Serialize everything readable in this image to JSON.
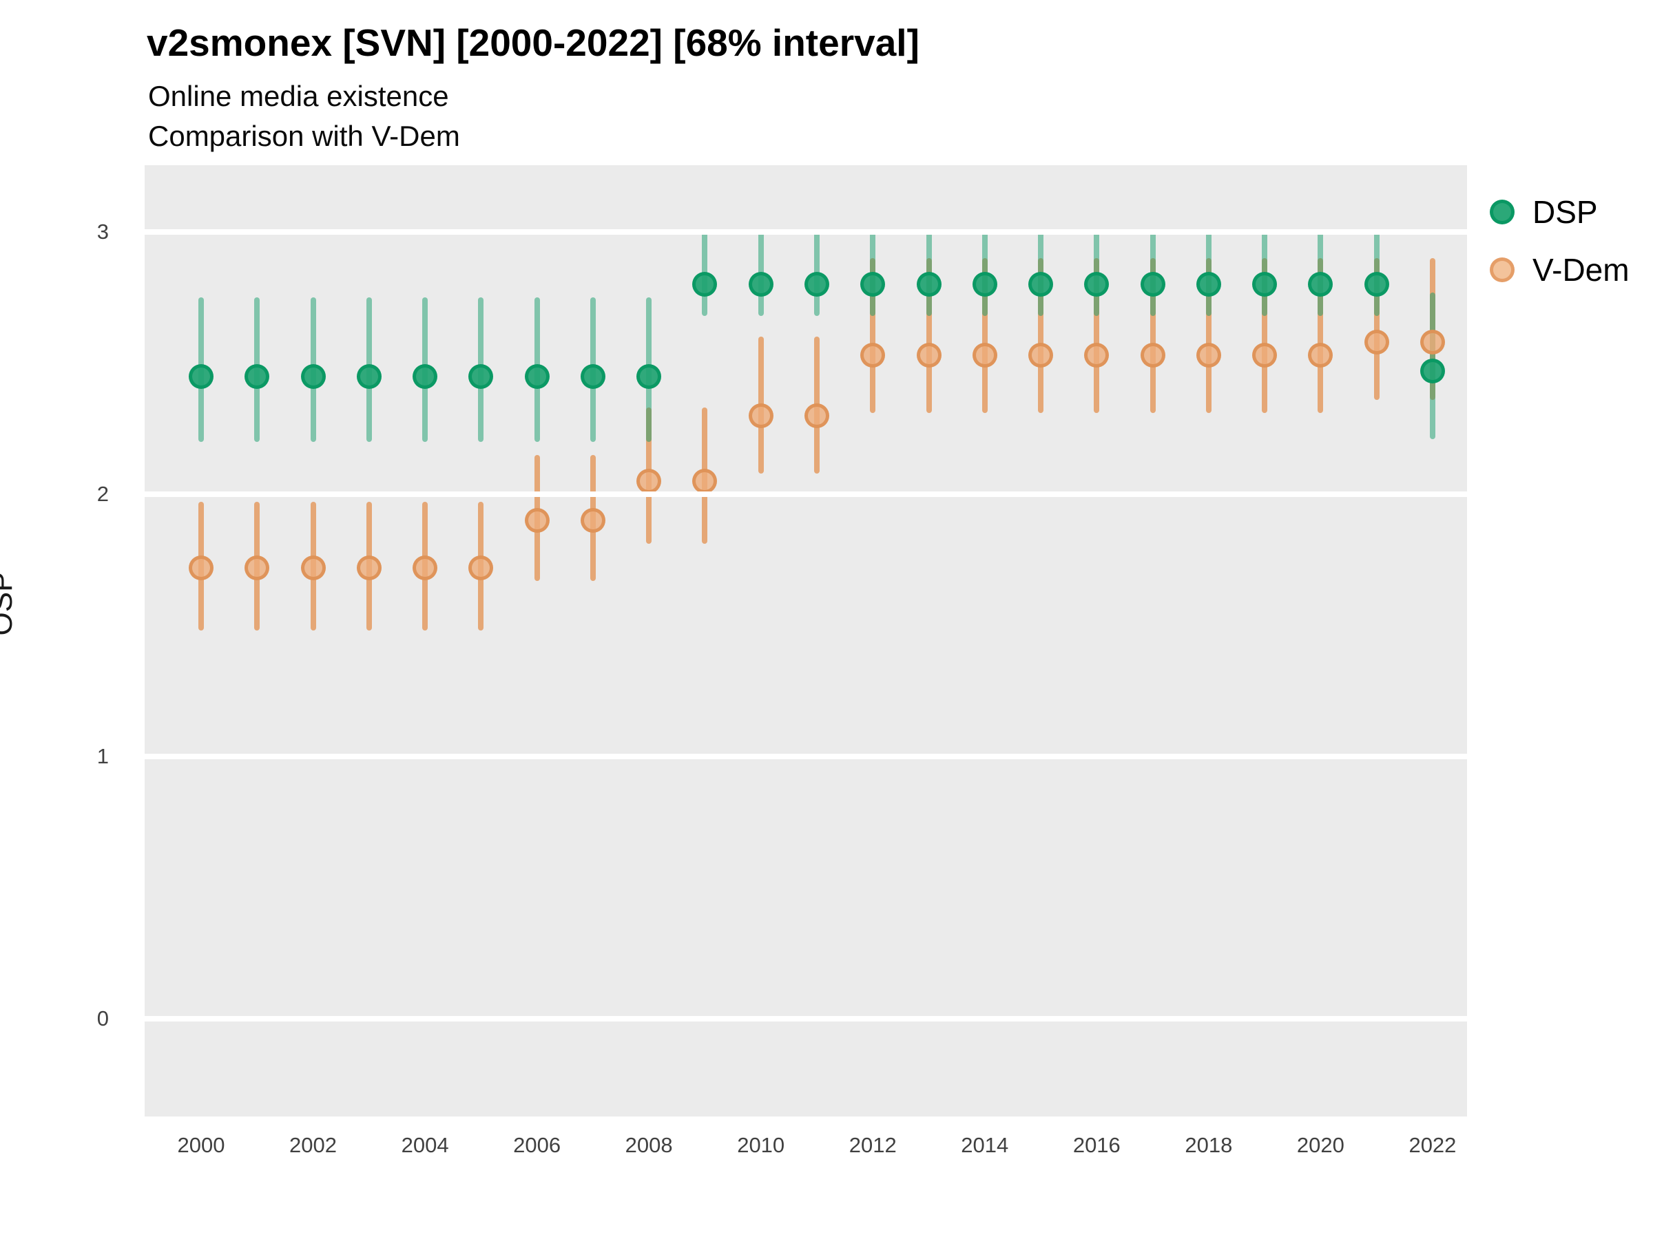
{
  "header": {
    "title": "v2smonex [SVN] [2000-2022] [68% interval]",
    "subtitle": "Online media existence",
    "subtitle2": "Comparison with V-Dem"
  },
  "axes": {
    "y_title": "OSP",
    "y_ticks": [
      3,
      2,
      1,
      0
    ],
    "x_ticks": [
      2000,
      2002,
      2004,
      2006,
      2008,
      2010,
      2012,
      2014,
      2016,
      2018,
      2020,
      2022
    ]
  },
  "legend": {
    "items": [
      {
        "label": "DSP",
        "color": "#17a06d"
      },
      {
        "label": "V-Dem",
        "color": "#e07b3a"
      }
    ]
  },
  "colors": {
    "panel_background": "#ebebeb",
    "gridline": "#ffffff",
    "dsp": "#17a06d",
    "vdem": "#e07b3a"
  },
  "chart_data": {
    "type": "pointrange",
    "title": "v2smonex [SVN] [2000-2022] [68% interval]",
    "subtitle": [
      "Online media existence",
      "Comparison with V-Dem"
    ],
    "xlabel": "",
    "ylabel": "OSP",
    "interval": "68%",
    "grid": "major-horizontal",
    "legend_position": "right",
    "ylim": [
      0,
      3
    ],
    "x": [
      2000,
      2001,
      2002,
      2003,
      2004,
      2005,
      2006,
      2007,
      2008,
      2009,
      2010,
      2011,
      2012,
      2013,
      2014,
      2015,
      2016,
      2017,
      2018,
      2019,
      2020,
      2021,
      2022
    ],
    "series": [
      {
        "name": "DSP",
        "point": [
          2.45,
          2.45,
          2.45,
          2.45,
          2.45,
          2.45,
          2.45,
          2.45,
          2.45,
          2.8,
          2.8,
          2.8,
          2.8,
          2.8,
          2.8,
          2.8,
          2.8,
          2.8,
          2.8,
          2.8,
          2.8,
          2.8,
          2.47
        ],
        "lo": [
          2.2,
          2.2,
          2.2,
          2.2,
          2.2,
          2.2,
          2.2,
          2.2,
          2.2,
          2.68,
          2.68,
          2.68,
          2.68,
          2.68,
          2.68,
          2.68,
          2.68,
          2.68,
          2.68,
          2.68,
          2.68,
          2.68,
          2.21
        ],
        "hi": [
          2.75,
          2.75,
          2.75,
          2.75,
          2.75,
          2.75,
          2.75,
          2.75,
          2.75,
          3.0,
          3.0,
          3.0,
          3.0,
          3.0,
          3.0,
          3.0,
          3.0,
          3.0,
          3.0,
          3.0,
          3.0,
          3.0,
          2.77
        ]
      },
      {
        "name": "V-Dem",
        "point": [
          1.72,
          1.72,
          1.72,
          1.72,
          1.72,
          1.72,
          1.9,
          1.9,
          2.05,
          2.05,
          2.3,
          2.3,
          2.53,
          2.53,
          2.53,
          2.53,
          2.53,
          2.53,
          2.53,
          2.53,
          2.53,
          2.58,
          2.58
        ],
        "lo": [
          1.48,
          1.48,
          1.48,
          1.48,
          1.48,
          1.48,
          1.67,
          1.67,
          1.81,
          1.81,
          2.08,
          2.08,
          2.31,
          2.31,
          2.31,
          2.31,
          2.31,
          2.31,
          2.31,
          2.31,
          2.31,
          2.36,
          2.36
        ],
        "hi": [
          1.97,
          1.97,
          1.97,
          1.97,
          1.97,
          1.97,
          2.15,
          2.15,
          2.33,
          2.33,
          2.6,
          2.6,
          2.9,
          2.9,
          2.9,
          2.9,
          2.9,
          2.9,
          2.9,
          2.9,
          2.9,
          2.9,
          2.9
        ]
      }
    ]
  }
}
